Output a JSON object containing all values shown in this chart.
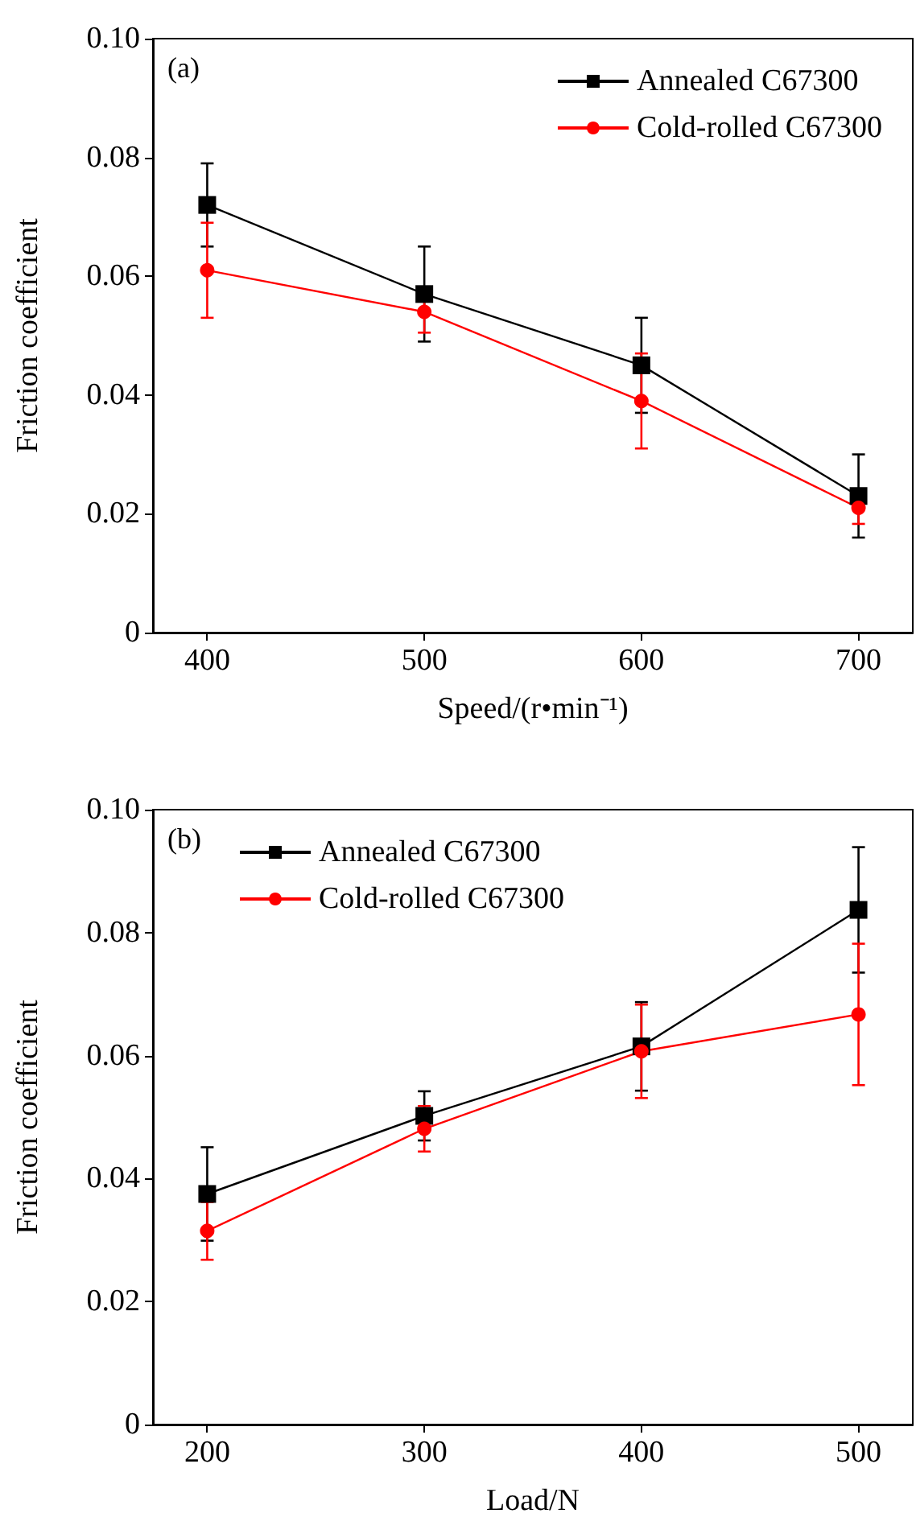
{
  "chart_data": [
    {
      "type": "line",
      "title": "(a)",
      "xlabel": "Speed/(r•min⁻¹)",
      "ylabel": "Friction coefficient",
      "x": [
        400,
        500,
        600,
        700
      ],
      "xlim": [
        375,
        725
      ],
      "xticks": [
        400,
        500,
        600,
        700
      ],
      "ylim": [
        0,
        0.1
      ],
      "yticks": [
        0,
        0.02,
        0.04,
        0.06,
        0.08,
        {
          "value": 0.1,
          "label": "0.10"
        }
      ],
      "grid": false,
      "legend": "top right",
      "line_style": "solid",
      "series": [
        {
          "name": "Annealed C67300",
          "color": "#000000",
          "marker": "square",
          "values": [
            0.072,
            0.057,
            0.045,
            0.023
          ],
          "errors": [
            0.007,
            0.008,
            0.008,
            0.007
          ]
        },
        {
          "name": "Cold-rolled C67300",
          "color": "#ff0000",
          "marker": "circle",
          "values": [
            0.061,
            0.054,
            0.039,
            0.021
          ],
          "errors": [
            0.008,
            0.0035,
            0.008,
            0.0027
          ]
        }
      ]
    },
    {
      "type": "line",
      "title": "(b)",
      "xlabel": "Load/N",
      "ylabel": "Friction coefficient",
      "x": [
        200,
        300,
        400,
        500
      ],
      "xlim": [
        175,
        525
      ],
      "xticks": [
        200,
        300,
        400,
        500
      ],
      "ylim": [
        0,
        0.1
      ],
      "yticks": [
        0,
        0.02,
        0.04,
        0.06,
        0.08,
        {
          "value": 0.1,
          "label": "0.10"
        }
      ],
      "grid": false,
      "legend": "top left",
      "line_style": "solid",
      "series": [
        {
          "name": "Annealed C67300",
          "color": "#000000",
          "marker": "square",
          "values": [
            0.0375,
            0.0502,
            0.0615,
            0.0837
          ],
          "errors": [
            0.0076,
            0.004,
            0.0072,
            0.0102
          ]
        },
        {
          "name": "Cold-rolled C67300",
          "color": "#ff0000",
          "marker": "circle",
          "values": [
            0.0315,
            0.0481,
            0.0607,
            0.0667
          ],
          "errors": [
            0.0047,
            0.0037,
            0.0076,
            0.0115
          ]
        }
      ]
    }
  ]
}
